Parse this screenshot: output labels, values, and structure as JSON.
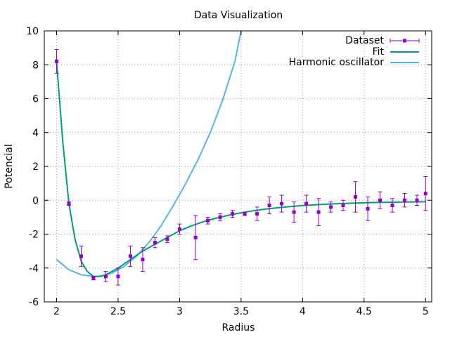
{
  "chart_data": {
    "type": "line",
    "title": "Data Visualization",
    "xlabel": "Radius",
    "ylabel": "Potencial",
    "xlim": [
      1.9,
      5.05
    ],
    "ylim": [
      -6,
      10
    ],
    "xticks": [
      2,
      2.5,
      3,
      3.5,
      4,
      4.5,
      5
    ],
    "xtick_labels": [
      "2",
      "2.5",
      "3",
      "3.5",
      "4",
      "4.5",
      "5"
    ],
    "yticks": [
      -6,
      -4,
      -2,
      0,
      2,
      4,
      6,
      8,
      10
    ],
    "ytick_labels": [
      "-6",
      "-4",
      "-2",
      "0",
      "2",
      "4",
      "6",
      "8",
      "10"
    ],
    "grid": true,
    "legend_position": "top-right",
    "series": [
      {
        "name": "Dataset",
        "kind": "errorbars",
        "color": "#9400d3",
        "x": [
          2.0,
          2.1,
          2.2,
          2.3,
          2.4,
          2.5,
          2.6,
          2.7,
          2.8,
          2.9,
          3.0,
          3.13,
          3.23,
          3.33,
          3.43,
          3.53,
          3.63,
          3.73,
          3.83,
          3.93,
          4.03,
          4.13,
          4.23,
          4.33,
          4.43,
          4.53,
          4.63,
          4.73,
          4.83,
          4.93,
          5.0
        ],
        "y": [
          8.2,
          -0.2,
          -3.3,
          -4.6,
          -4.5,
          -4.5,
          -3.3,
          -3.5,
          -2.5,
          -2.3,
          -1.7,
          -2.2,
          -1.2,
          -1.0,
          -0.8,
          -0.8,
          -0.8,
          -0.3,
          -0.2,
          -0.7,
          -0.2,
          -0.7,
          -0.4,
          -0.3,
          0.2,
          -0.5,
          0.0,
          -0.3,
          0.0,
          0.0,
          0.4
        ],
        "yerr": [
          0.7,
          0.1,
          0.6,
          0.1,
          0.3,
          0.5,
          0.6,
          0.7,
          0.3,
          0.2,
          0.3,
          1.3,
          0.2,
          0.2,
          0.2,
          0.1,
          0.4,
          0.5,
          0.5,
          0.6,
          0.5,
          0.8,
          0.3,
          0.3,
          0.9,
          0.7,
          0.5,
          0.4,
          0.4,
          0.3,
          1.0
        ]
      },
      {
        "name": "Fit",
        "kind": "line",
        "color": "#009e73",
        "x": [
          2.0,
          2.05,
          2.1,
          2.15,
          2.2,
          2.25,
          2.3,
          2.35,
          2.4,
          2.5,
          2.6,
          2.7,
          2.8,
          2.9,
          3.0,
          3.1,
          3.2,
          3.3,
          3.4,
          3.5,
          3.6,
          3.7,
          3.8,
          3.9,
          4.0,
          4.2,
          4.4,
          4.6,
          4.8,
          5.0
        ],
        "y": [
          8.2,
          3.5,
          -0.2,
          -2.3,
          -3.6,
          -4.2,
          -4.5,
          -4.5,
          -4.4,
          -4.0,
          -3.5,
          -3.0,
          -2.6,
          -2.2,
          -1.8,
          -1.5,
          -1.25,
          -1.05,
          -0.88,
          -0.74,
          -0.62,
          -0.52,
          -0.44,
          -0.37,
          -0.31,
          -0.23,
          -0.17,
          -0.13,
          -0.11,
          -0.09
        ]
      },
      {
        "name": "Harmonic oscillator",
        "kind": "line",
        "color": "#56b4e9",
        "x": [
          2.0,
          2.1,
          2.2,
          2.3,
          2.37,
          2.45,
          2.55,
          2.65,
          2.75,
          2.85,
          2.95,
          3.05,
          3.15,
          3.25,
          3.35,
          3.45,
          3.5
        ],
        "y": [
          -3.5,
          -4.1,
          -4.4,
          -4.5,
          -4.48,
          -4.3,
          -3.9,
          -3.3,
          -2.5,
          -1.5,
          -0.3,
          1.0,
          2.4,
          4.0,
          5.9,
          8.2,
          10.0
        ]
      }
    ]
  }
}
